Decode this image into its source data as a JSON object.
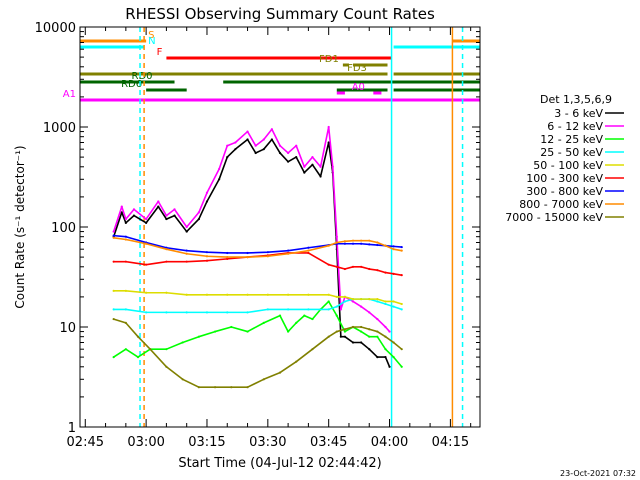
{
  "chart_data": {
    "type": "line",
    "title": "RHESSI Observing Summary Count Rates",
    "xlabel": "Start Time (04-Jul-12 02:44:42)",
    "ylabel": "Count Rate (s⁻¹ detector⁻¹)",
    "yscale": "log",
    "ylim": [
      1,
      10000
    ],
    "xlim_minutes": [
      -1.3,
      97.3
    ],
    "x_ticks": [
      {
        "label": "02:45",
        "minute": 0
      },
      {
        "label": "03:00",
        "minute": 15
      },
      {
        "label": "03:15",
        "minute": 30
      },
      {
        "label": "03:30",
        "minute": 45
      },
      {
        "label": "03:45",
        "minute": 60
      },
      {
        "label": "04:00",
        "minute": 75
      },
      {
        "label": "04:15",
        "minute": 90
      }
    ],
    "y_ticks": [
      {
        "label": "1",
        "value": 1
      },
      {
        "label": "10",
        "value": 10
      },
      {
        "label": "100",
        "value": 100
      },
      {
        "label": "1000",
        "value": 1000
      },
      {
        "label": "10000",
        "value": 10000
      }
    ],
    "legend": {
      "title": "Det 1,3,5,6,9",
      "placement": "right-outside"
    },
    "series": [
      {
        "name": "3 - 6 keV",
        "color": "#000000",
        "x": [
          7,
          9,
          10,
          12,
          15,
          18,
          20,
          22,
          25,
          28,
          30,
          33,
          35,
          37,
          40,
          42,
          44,
          46,
          48,
          50,
          52,
          54,
          56,
          58,
          60,
          61,
          62,
          63,
          64,
          66,
          68,
          70,
          72,
          74,
          75
        ],
        "y": [
          80,
          140,
          110,
          130,
          110,
          160,
          120,
          130,
          90,
          120,
          180,
          300,
          500,
          600,
          750,
          550,
          600,
          750,
          550,
          450,
          500,
          350,
          420,
          320,
          700,
          350,
          60,
          8,
          8,
          7,
          7,
          6,
          5,
          5,
          4
        ]
      },
      {
        "name": "6 - 12 keV",
        "color": "#ff00ff",
        "x": [
          7,
          9,
          10,
          12,
          15,
          18,
          20,
          22,
          25,
          28,
          30,
          33,
          35,
          37,
          40,
          42,
          44,
          46,
          48,
          50,
          52,
          54,
          56,
          58,
          60,
          61,
          62,
          63,
          64,
          66,
          68,
          70,
          72,
          74,
          75
        ],
        "y": [
          90,
          160,
          120,
          150,
          120,
          180,
          130,
          150,
          100,
          140,
          220,
          380,
          650,
          700,
          900,
          650,
          750,
          950,
          650,
          550,
          650,
          400,
          500,
          400,
          1000,
          400,
          80,
          15,
          20,
          18,
          16,
          14,
          12,
          10,
          9
        ]
      },
      {
        "name": "12 - 25 keV",
        "color": "#00ff00",
        "x": [
          7,
          10,
          13,
          16,
          20,
          24,
          28,
          32,
          36,
          40,
          44,
          48,
          50,
          52,
          54,
          56,
          58,
          60,
          62,
          64,
          66,
          68,
          70,
          72,
          74,
          76,
          78
        ],
        "y": [
          5,
          6,
          5,
          6,
          6,
          7,
          8,
          9,
          10,
          9,
          11,
          13,
          9,
          11,
          13,
          12,
          15,
          18,
          13,
          9,
          10,
          9,
          8,
          8,
          6,
          5,
          4
        ]
      },
      {
        "name": "25 - 50 keV",
        "color": "#00ffff",
        "x": [
          7,
          10,
          15,
          20,
          25,
          30,
          35,
          40,
          45,
          50,
          55,
          60,
          62,
          64,
          66,
          68,
          70,
          72,
          74,
          76,
          78
        ],
        "y": [
          15,
          15,
          14,
          14,
          14,
          14,
          14,
          14,
          15,
          15,
          15,
          15,
          16,
          18,
          19,
          19,
          19,
          18,
          17,
          16,
          15
        ]
      },
      {
        "name": "50 - 100 keV",
        "color": "#dddd00",
        "x": [
          7,
          10,
          15,
          20,
          25,
          30,
          35,
          40,
          45,
          50,
          55,
          60,
          62,
          64,
          66,
          68,
          70,
          72,
          74,
          76,
          78
        ],
        "y": [
          23,
          23,
          22,
          22,
          21,
          21,
          21,
          21,
          21,
          21,
          21,
          21,
          20,
          20,
          19,
          19,
          19,
          19,
          18,
          18,
          17
        ]
      },
      {
        "name": "100 - 300 keV",
        "color": "#ff0000",
        "x": [
          7,
          10,
          15,
          20,
          25,
          30,
          35,
          40,
          45,
          50,
          55,
          60,
          62,
          64,
          66,
          68,
          70,
          72,
          74,
          76,
          78
        ],
        "y": [
          45,
          45,
          42,
          45,
          45,
          46,
          48,
          50,
          52,
          55,
          55,
          42,
          40,
          38,
          40,
          40,
          38,
          37,
          35,
          34,
          33
        ]
      },
      {
        "name": "300 - 800 keV",
        "color": "#0000ff",
        "x": [
          7,
          10,
          15,
          20,
          25,
          30,
          35,
          40,
          45,
          50,
          55,
          60,
          62,
          64,
          66,
          68,
          70,
          72,
          74,
          76,
          78
        ],
        "y": [
          82,
          80,
          70,
          62,
          58,
          56,
          55,
          55,
          56,
          58,
          62,
          66,
          68,
          68,
          68,
          68,
          67,
          66,
          65,
          64,
          63
        ]
      },
      {
        "name": "800 - 7000 keV",
        "color": "#ff8c00",
        "x": [
          7,
          10,
          15,
          20,
          25,
          30,
          35,
          40,
          45,
          50,
          55,
          60,
          62,
          64,
          66,
          68,
          70,
          72,
          74,
          76,
          78
        ],
        "y": [
          78,
          75,
          68,
          60,
          54,
          51,
          50,
          50,
          51,
          54,
          58,
          65,
          70,
          72,
          73,
          73,
          73,
          70,
          65,
          60,
          58
        ]
      },
      {
        "name": "7000 - 15000 keV",
        "color": "#808000",
        "x": [
          7,
          10,
          13,
          16,
          20,
          24,
          28,
          32,
          36,
          40,
          44,
          48,
          52,
          56,
          60,
          62,
          64,
          66,
          68,
          70,
          72,
          74,
          76,
          78
        ],
        "y": [
          12,
          11,
          8,
          6,
          4,
          3,
          2.5,
          2.5,
          2.5,
          2.5,
          3,
          3.5,
          4.5,
          6,
          8,
          9,
          9.5,
          10,
          10,
          9.5,
          9,
          8,
          7,
          6
        ]
      }
    ],
    "state_bars": [
      {
        "label": "S",
        "color": "#ff8c00",
        "segments": [
          [
            -1.3,
            15
          ],
          [
            90.5,
            97.3
          ]
        ]
      },
      {
        "label": "N",
        "color": "#00ffff",
        "segments": [
          [
            -1.3,
            14.5
          ],
          [
            76,
            97.3
          ]
        ]
      },
      {
        "label": "F",
        "color": "#ff0000",
        "segments": [
          [
            20,
            75.5
          ]
        ]
      },
      {
        "label": "FD1",
        "color": "#808000",
        "segments": [
          [
            63.5,
            65
          ],
          [
            66,
            74.5
          ]
        ]
      },
      {
        "label": "FD3",
        "color": "#808000",
        "segments": [
          [
            -1.3,
            74.5
          ],
          [
            76,
            97.3
          ]
        ]
      },
      {
        "label": "RD0",
        "color": "#006400",
        "segments": [
          [
            -1.3,
            22
          ],
          [
            34,
            97.3
          ]
        ]
      },
      {
        "label": "RD6",
        "color": "#006400",
        "segments": [
          [
            15,
            25
          ],
          [
            62,
            74.5
          ],
          [
            76,
            97.3
          ]
        ]
      },
      {
        "label": "A0",
        "color": "#ff00ff",
        "segments": [
          [
            62,
            64
          ],
          [
            71,
            73
          ]
        ]
      },
      {
        "label": "A1",
        "color": "#ff00ff",
        "segments": [
          [
            -1.3,
            97.3
          ]
        ]
      }
    ],
    "vertical_lines": [
      {
        "minute": 13.5,
        "color": "#00ffff",
        "style": "dashed"
      },
      {
        "minute": 14.5,
        "color": "#ff8c00",
        "style": "dashed"
      },
      {
        "minute": 75.5,
        "color": "#00ffff",
        "style": "solid"
      },
      {
        "minute": 90.5,
        "color": "#ff8c00",
        "style": "solid"
      },
      {
        "minute": 93,
        "color": "#00ffff",
        "style": "dashed"
      }
    ]
  },
  "footer": {
    "date_stamp": "23-Oct-2021 07:32"
  }
}
